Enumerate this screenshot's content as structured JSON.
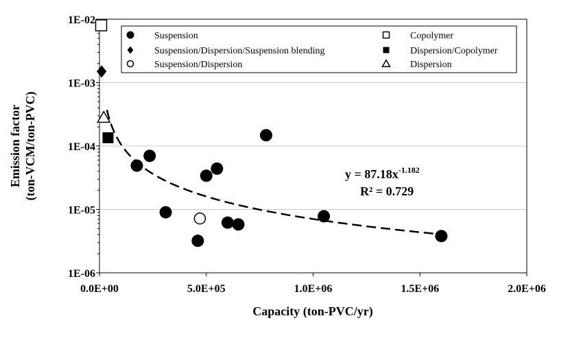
{
  "chart_data": {
    "type": "scatter",
    "xlabel": "Capacity  (ton-PVC/yr)",
    "ylabel_line1": "Emission factor",
    "ylabel_line2": "(ton-VCM/ton-PVC)",
    "xlim": [
      0,
      2000000
    ],
    "ylim": [
      1e-06,
      0.01
    ],
    "y_scale": "log",
    "x_ticks": [
      {
        "value": 0,
        "label": "0.0E+00"
      },
      {
        "value": 500000,
        "label": "5.0E+05"
      },
      {
        "value": 1000000,
        "label": "1.0E+06"
      },
      {
        "value": 1500000,
        "label": "1.5E+06"
      },
      {
        "value": 2000000,
        "label": "2.0E+06"
      }
    ],
    "y_ticks": [
      {
        "value": 1e-06,
        "label": "1E-06"
      },
      {
        "value": 1e-05,
        "label": "1E-05"
      },
      {
        "value": 0.0001,
        "label": "1E-04"
      },
      {
        "value": 0.001,
        "label": "1E-03"
      },
      {
        "value": 0.01,
        "label": "1E-02"
      }
    ],
    "grid": "horizontal",
    "legend_position": "top",
    "series": [
      {
        "name": "Suspension",
        "marker": "filled-circle",
        "points": [
          [
            175000,
            4.9e-05
          ],
          [
            235000,
            7e-05
          ],
          [
            310000,
            9e-06
          ],
          [
            460000,
            3.2e-06
          ],
          [
            500000,
            3.4e-05
          ],
          [
            550000,
            4.4e-05
          ],
          [
            600000,
            6.2e-06
          ],
          [
            650000,
            5.8e-06
          ],
          [
            780000,
            0.000148
          ],
          [
            1050000,
            7.8e-06
          ],
          [
            1600000,
            3.8e-06
          ]
        ]
      },
      {
        "name": "Suspension/Dispersion/Suspension blending",
        "marker": "filled-diamond",
        "points": [
          [
            10000,
            0.0015
          ]
        ]
      },
      {
        "name": "Suspension/Dispersion",
        "marker": "open-circle",
        "points": [
          [
            470000,
            7.2e-06
          ]
        ]
      },
      {
        "name": "Copolymer",
        "marker": "open-square",
        "points": [
          [
            8000,
            0.008
          ]
        ]
      },
      {
        "name": "Dispersion/Copolymer",
        "marker": "filled-square",
        "points": [
          [
            40000,
            0.000135
          ]
        ]
      },
      {
        "name": "Dispersion",
        "marker": "open-triangle",
        "points": [
          [
            20000,
            0.00028
          ]
        ]
      }
    ],
    "trendline": {
      "style": "dashed",
      "coefficient": 87.18,
      "exponent": -1.182,
      "x_start": 35000,
      "x_end": 1600000
    },
    "equation": {
      "base": "y = 87.18x",
      "exponent": "-1.182",
      "r_squared": "R² = 0.729"
    }
  }
}
